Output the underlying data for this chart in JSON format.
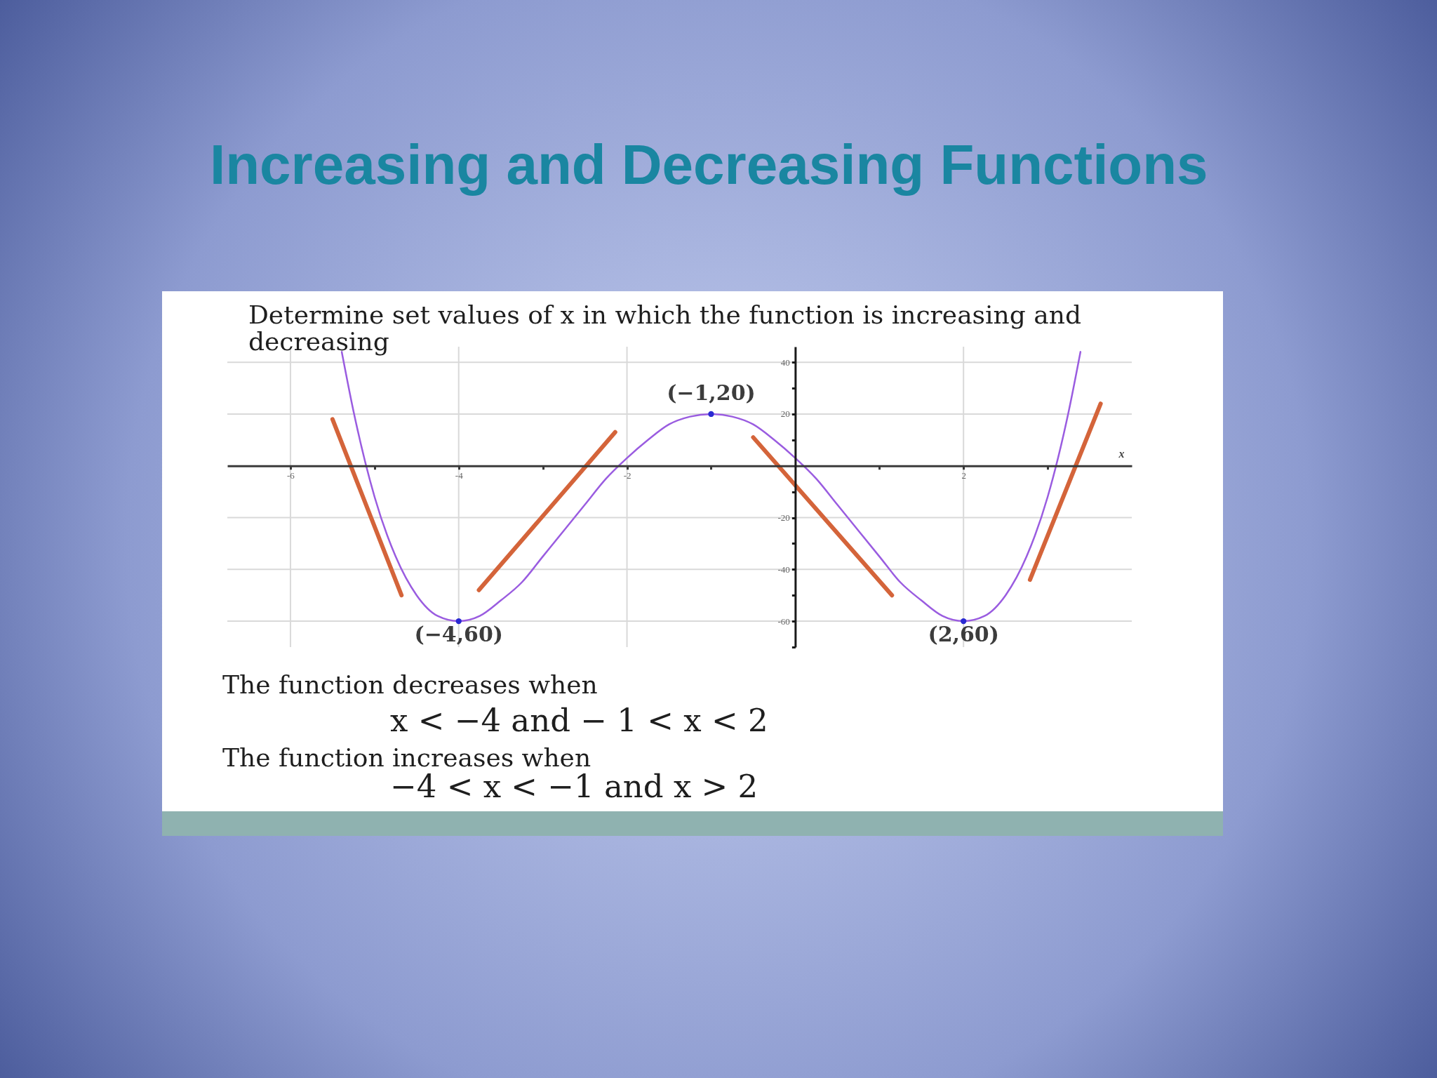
{
  "chart_data": {
    "type": "line",
    "title": "Increasing and Decreasing Functions",
    "subtitle": "Determine set values of x in which the function is increasing and decreasing",
    "xlabel": "x",
    "xlim": [
      -6.75,
      4
    ],
    "ylim": [
      -70,
      46
    ],
    "xticks": [
      -6,
      {
        "value": -5,
        "label": null
      },
      -4,
      {
        "value": -3,
        "label": null
      },
      -2,
      {
        "value": -1,
        "label": null
      },
      {
        "value": 1,
        "label": null
      },
      2,
      {
        "value": 3,
        "label": null
      }
    ],
    "yticks": [
      {
        "value": -70,
        "label": null
      },
      -60,
      {
        "value": -50,
        "label": null
      },
      -40,
      {
        "value": -30,
        "label": null
      },
      -20,
      {
        "value": -10,
        "label": null
      },
      {
        "value": 10,
        "label": null
      },
      20,
      {
        "value": 30,
        "label": null
      },
      40
    ],
    "grid": true,
    "series": [
      {
        "color": "#9a5ce0",
        "x": [
          -5.39,
          -5.25,
          -5,
          -4.75,
          -4.5,
          -4.25,
          -4,
          -3.75,
          -3.5,
          -3.25,
          -3,
          -2.75,
          -2.5,
          -2.25,
          -2,
          -1.75,
          -1.5,
          -1.25,
          -1,
          -0.75,
          -0.5,
          -0.25,
          0,
          0.25,
          0.5,
          0.75,
          1,
          1.25,
          1.5,
          1.75,
          2,
          2.25,
          2.5,
          2.75,
          3,
          3.25,
          3.39
        ],
        "values": [
          44,
          21,
          -12,
          -35,
          -50,
          -58,
          -60,
          -58,
          -52,
          -45,
          -35,
          -25,
          -15,
          -5,
          3,
          10,
          16,
          19,
          20,
          19,
          16,
          10,
          3,
          -5,
          -15,
          -25,
          -35,
          -45,
          -52,
          -58,
          -60,
          -58,
          -50,
          -35,
          -12,
          21,
          44
        ]
      },
      {
        "type": "scatter",
        "color": "#2a2ad2",
        "marker": "circle",
        "x": [
          -4,
          -1,
          2
        ],
        "values": [
          -60,
          20,
          -60
        ]
      },
      {
        "color": "#d4643a",
        "x": [
          -5.5,
          -4.68
        ],
        "values": [
          18,
          -50
        ]
      },
      {
        "color": "#d4643a",
        "x": [
          -3.76,
          -2.14
        ],
        "values": [
          -48,
          13
        ]
      },
      {
        "color": "#d4643a",
        "x": [
          -0.5,
          1.15
        ],
        "values": [
          11,
          -50
        ]
      },
      {
        "color": "#d4643a",
        "x": [
          2.79,
          3.63
        ],
        "values": [
          -44,
          24
        ]
      }
    ],
    "annotations": [
      {
        "text": "(−1,20)",
        "x": -1,
        "y": 20
      },
      {
        "text": "(−4,60)",
        "x": -4,
        "y": -60
      },
      {
        "text": "(2,60)",
        "x": 2,
        "y": -60
      },
      "The function decreases when",
      "x < −4 and − 1 < x < 2",
      "The function increases when",
      "−4 < x < −1 and x > 2"
    ]
  }
}
